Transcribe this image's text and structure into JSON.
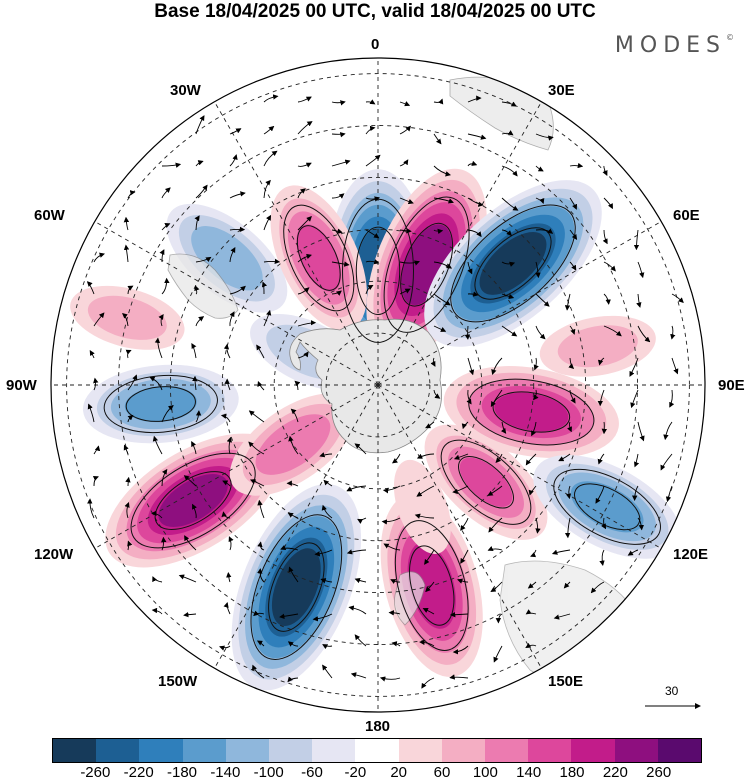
{
  "title": "Base 18/04/2025 00 UTC, valid 18/04/2025 00 UTC",
  "brand": "MODES",
  "brand_mark": "©",
  "longitude_labels": {
    "lon_0": "0",
    "lon_30e": "30E",
    "lon_60e": "60E",
    "lon_90e": "90E",
    "lon_120e": "120E",
    "lon_150e": "150E",
    "lon_180": "180",
    "lon_150w": "150W",
    "lon_120w": "120W",
    "lon_90w": "90W",
    "lon_60w": "60W",
    "lon_30w": "30W"
  },
  "reference_vector": {
    "value": "30"
  },
  "colorbar": {
    "ticks": [
      "-260",
      "-220",
      "-180",
      "-140",
      "-100",
      "-60",
      "-20",
      "20",
      "60",
      "100",
      "140",
      "180",
      "220",
      "260"
    ],
    "colors": [
      "#163a5a",
      "#1d5f93",
      "#2f7fbb",
      "#5b9ccd",
      "#8fb7dc",
      "#c2cfe6",
      "#e6e6f3",
      "#ffffff",
      "#f9d6da",
      "#f4aec3",
      "#ec7bb0",
      "#dd479c",
      "#c21c8a",
      "#8e0f7f",
      "#5a0a6e"
    ]
  },
  "colors": {
    "land": "#e8e8e8",
    "coast": "#888888",
    "grid": "#222222",
    "wind": "#000000"
  },
  "anomaly_field": [
    {
      "lon": 0,
      "colat": 22,
      "value": -230
    },
    {
      "lon": 22,
      "colat": 25,
      "value": 230
    },
    {
      "lon": 48,
      "colat": 35,
      "value": -260
    },
    {
      "lon": 100,
      "colat": 30,
      "value": 180
    },
    {
      "lon": 132,
      "colat": 28,
      "value": 130
    },
    {
      "lon": 118,
      "colat": 50,
      "value": -150
    },
    {
      "lon": 165,
      "colat": 40,
      "value": 200
    },
    {
      "lon": -158,
      "colat": 42,
      "value": -260
    },
    {
      "lon": -122,
      "colat": 42,
      "value": 220
    },
    {
      "lon": -95,
      "colat": 42,
      "value": -140
    },
    {
      "lon": -125,
      "colat": 20,
      "value": 120
    },
    {
      "lon": -50,
      "colat": 38,
      "value": -120
    },
    {
      "lon": -25,
      "colat": 27,
      "value": 140
    },
    {
      "lon": -65,
      "colat": 15,
      "value": -80
    },
    {
      "lon": 80,
      "colat": 43,
      "value": 70
    },
    {
      "lon": -75,
      "colat": 50,
      "value": 70
    },
    {
      "lon": 160,
      "colat": 25,
      "value": 40
    }
  ]
}
